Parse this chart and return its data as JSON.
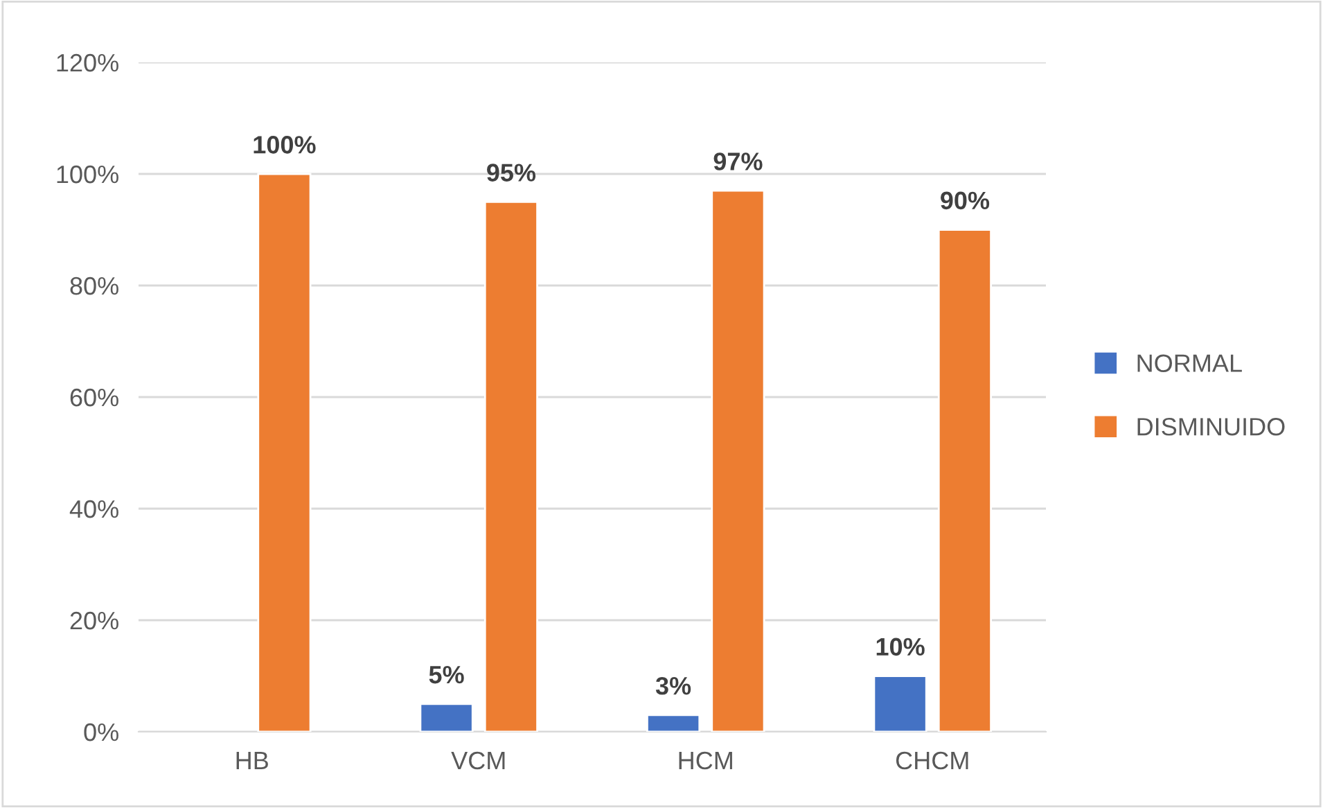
{
  "chart_data": {
    "type": "bar",
    "categories": [
      "HB",
      "VCM",
      "HCM",
      "CHCM"
    ],
    "series": [
      {
        "name": "NORMAL",
        "color": "#4472c4",
        "values": [
          null,
          5,
          3,
          10
        ],
        "value_labels": [
          null,
          "5%",
          "3%",
          "10%"
        ]
      },
      {
        "name": "DISMINUIDO",
        "color": "#ed7d31",
        "values": [
          100,
          95,
          97,
          90
        ],
        "value_labels": [
          "100%",
          "95%",
          "97%",
          "90%"
        ]
      }
    ],
    "ylim": [
      0,
      120
    ],
    "yticks": [
      {
        "value": 0,
        "label": "0%"
      },
      {
        "value": 20,
        "label": "20%"
      },
      {
        "value": 40,
        "label": "40%"
      },
      {
        "value": 60,
        "label": "60%"
      },
      {
        "value": 80,
        "label": "80%"
      },
      {
        "value": 100,
        "label": "100%"
      },
      {
        "value": 120,
        "label": "120%"
      }
    ],
    "grid": "y",
    "legend": "right"
  }
}
